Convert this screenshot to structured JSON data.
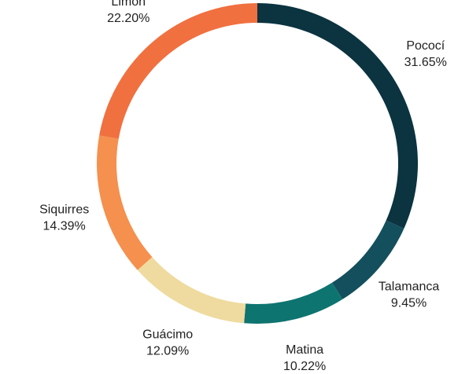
{
  "chart_data": {
    "type": "donut",
    "categories": [
      "Pococí",
      "Talamanca",
      "Matina",
      "Guácimo",
      "Siquirres",
      "Limón"
    ],
    "values": [
      31.65,
      9.45,
      10.22,
      12.09,
      14.39,
      22.2
    ],
    "value_labels": [
      "31.65%",
      "9.45%",
      "10.22%",
      "12.09%",
      "14.39%",
      "22.20%"
    ],
    "colors": [
      "#0b3340",
      "#134f5c",
      "#0e7470",
      "#efdba0",
      "#f5904e",
      "#f07040"
    ]
  }
}
